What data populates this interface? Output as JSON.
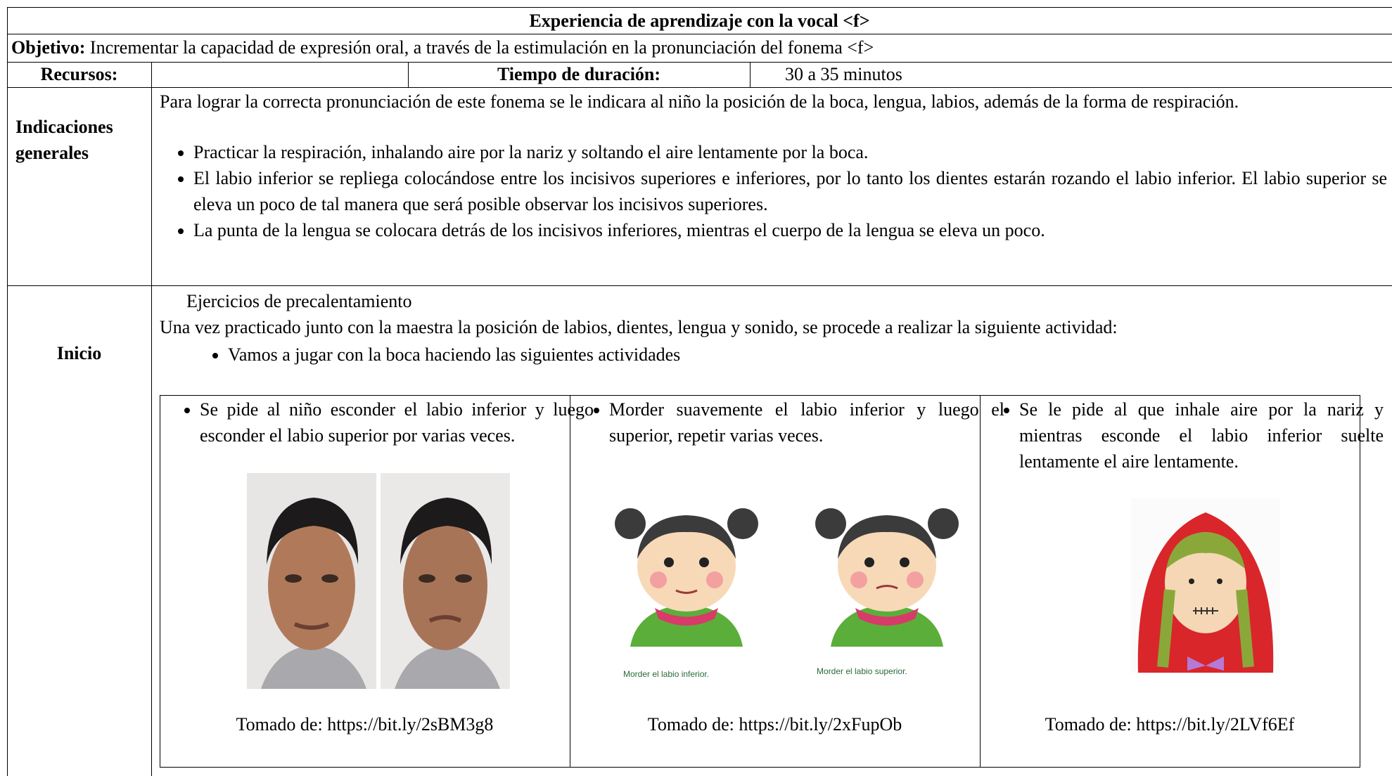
{
  "header": {
    "title": "Experiencia  de aprendizaje con la vocal <f>"
  },
  "objective": {
    "label": "Objetivo:",
    "text": "Incrementar la capacidad de expresión oral, a través de la estimulación en la pronunciación del fonema <f>"
  },
  "resources": {
    "label": "Recursos:",
    "time_label": "Tiempo de duración:",
    "time_value": "30 a 35 minutos"
  },
  "general": {
    "label": "Indicaciones generales",
    "intro": "Para lograr la correcta pronunciación de este fonema se le indicara al niño la posición de la boca, lengua, labios, además de la forma de respiración.",
    "bullets": [
      "Practicar la respiración, inhalando aire por la nariz y soltando el aire lentamente por la boca.",
      "El labio inferior se repliega colocándose entre los incisivos superiores e inferiores, por lo tanto los dientes estarán rozando el labio inferior. El labio superior se eleva un poco de tal manera que será posible observar los incisivos superiores.",
      "La punta de la lengua se colocara detrás de los incisivos inferiores, mientras el cuerpo de la lengua se eleva un poco."
    ]
  },
  "start": {
    "label": "Inicio",
    "heading": "Ejercicios de precalentamiento",
    "text": "Una vez practicado junto con la maestra la posición de labios, dientes, lengua y sonido, se procede a realizar la siguiente actividad:",
    "bullet": "Vamos a jugar con la boca haciendo las siguientes actividades",
    "activities": [
      {
        "text": "Se pide al niño esconder el labio inferior y luego esconder el labio superior por varias veces.",
        "source": "Tomado de: https://bit.ly/2sBM3g8"
      },
      {
        "text": "Morder suavemente el labio inferior y luego el superior, repetir varias veces.",
        "source": "Tomado de: https://bit.ly/2xFupOb",
        "captions": [
          "Morder el labio inferior.",
          "Morder el labio superior."
        ]
      },
      {
        "text": "Se le pide al que inhale aire por la nariz y mientras esconde el labio inferior suelte lentamente el aire lentamente.",
        "source": "Tomado de: https://bit.ly/2LVf6Ef"
      }
    ]
  }
}
